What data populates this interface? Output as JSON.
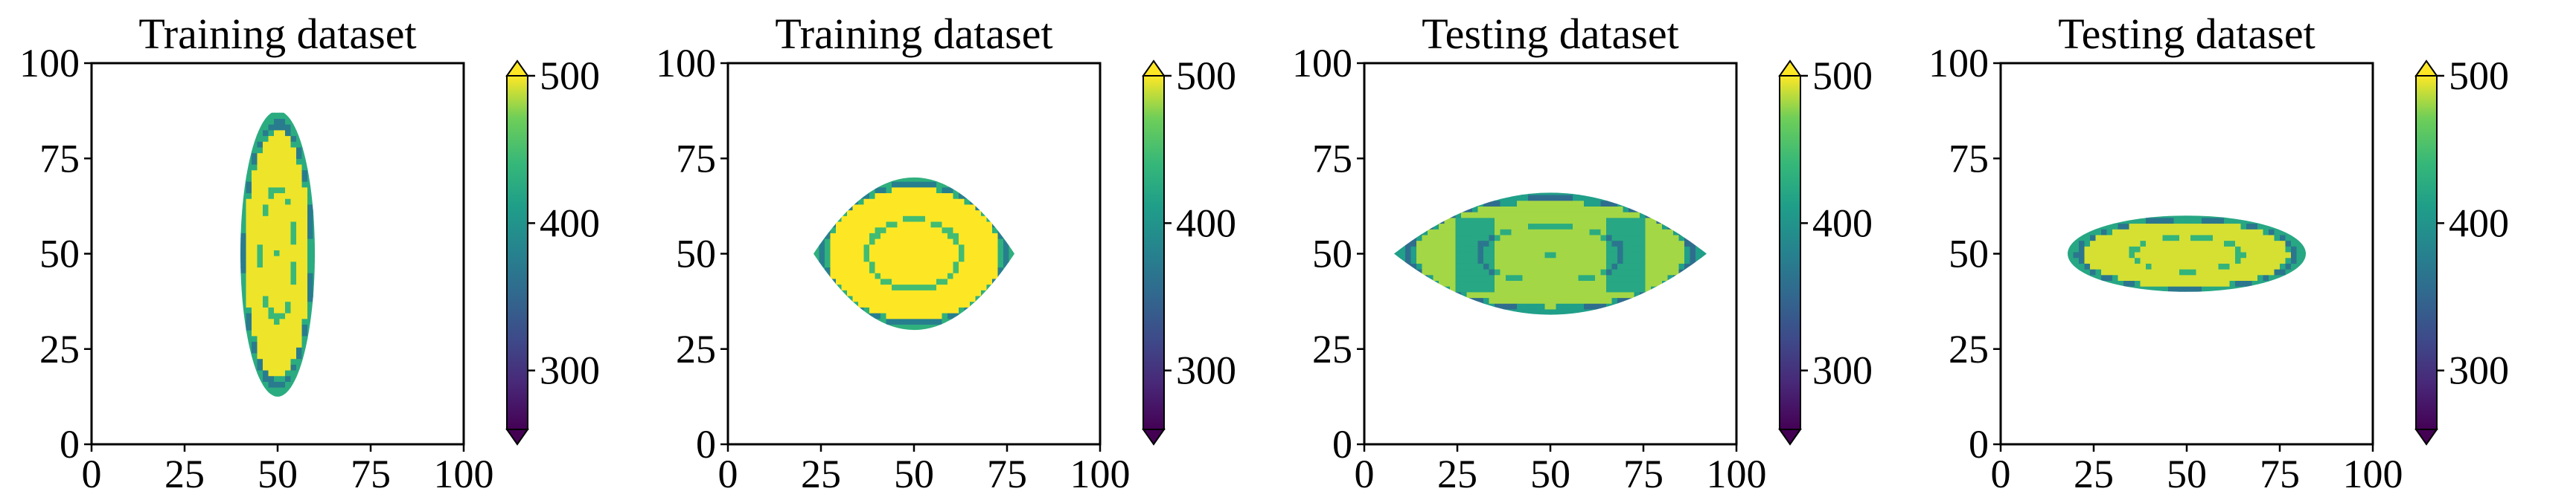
{
  "chart_data": [
    {
      "type": "heatmap",
      "title": "Training dataset",
      "shape": "vertical-ellipse",
      "center": [
        50,
        50
      ],
      "x_extent": [
        40,
        60
      ],
      "y_extent": [
        12,
        87
      ],
      "xlim": [
        0,
        100
      ],
      "ylim": [
        0,
        100
      ],
      "xticks": [
        "0",
        "25",
        "50",
        "75",
        "100"
      ],
      "yticks": [
        "0",
        "25",
        "50",
        "75",
        "100"
      ],
      "colorbar": {
        "ticks": [
          "300",
          "400",
          "500"
        ],
        "range": [
          260,
          500
        ],
        "colormap": "viridis",
        "extend": "both"
      },
      "dominant_value": 485,
      "xlabel": "",
      "ylabel": ""
    },
    {
      "type": "heatmap",
      "title": "Training dataset",
      "shape": "lens",
      "center": [
        50,
        50
      ],
      "x_extent": [
        23,
        77
      ],
      "y_extent": [
        30,
        70
      ],
      "xlim": [
        0,
        100
      ],
      "ylim": [
        0,
        100
      ],
      "xticks": [
        "0",
        "25",
        "50",
        "75",
        "100"
      ],
      "yticks": [
        "0",
        "25",
        "50",
        "75",
        "100"
      ],
      "colorbar": {
        "ticks": [
          "300",
          "400",
          "500"
        ],
        "range": [
          260,
          500
        ],
        "colormap": "viridis",
        "extend": "both"
      },
      "dominant_value": 490,
      "xlabel": "",
      "ylabel": ""
    },
    {
      "type": "heatmap",
      "title": "Testing dataset",
      "shape": "lens",
      "center": [
        50,
        50
      ],
      "x_extent": [
        8,
        92
      ],
      "y_extent": [
        34,
        66
      ],
      "xlim": [
        0,
        100
      ],
      "ylim": [
        0,
        100
      ],
      "xticks": [
        "0",
        "25",
        "50",
        "75",
        "100"
      ],
      "yticks": [
        "0",
        "25",
        "50",
        "75",
        "100"
      ],
      "colorbar": {
        "ticks": [
          "300",
          "400",
          "500"
        ],
        "range": [
          260,
          500
        ],
        "colormap": "viridis",
        "extend": "both"
      },
      "dominant_value": 470,
      "xlabel": "",
      "ylabel": ""
    },
    {
      "type": "heatmap",
      "title": "Testing dataset",
      "shape": "horizontal-ellipse",
      "center": [
        50,
        50
      ],
      "x_extent": [
        18,
        82
      ],
      "y_extent": [
        40,
        60
      ],
      "xlim": [
        0,
        100
      ],
      "ylim": [
        0,
        100
      ],
      "xticks": [
        "0",
        "25",
        "50",
        "75",
        "100"
      ],
      "yticks": [
        "0",
        "25",
        "50",
        "75",
        "100"
      ],
      "colorbar": {
        "ticks": [
          "300",
          "400",
          "500"
        ],
        "range": [
          260,
          500
        ],
        "colormap": "viridis",
        "extend": "both"
      },
      "dominant_value": 480,
      "xlabel": "",
      "ylabel": ""
    }
  ]
}
